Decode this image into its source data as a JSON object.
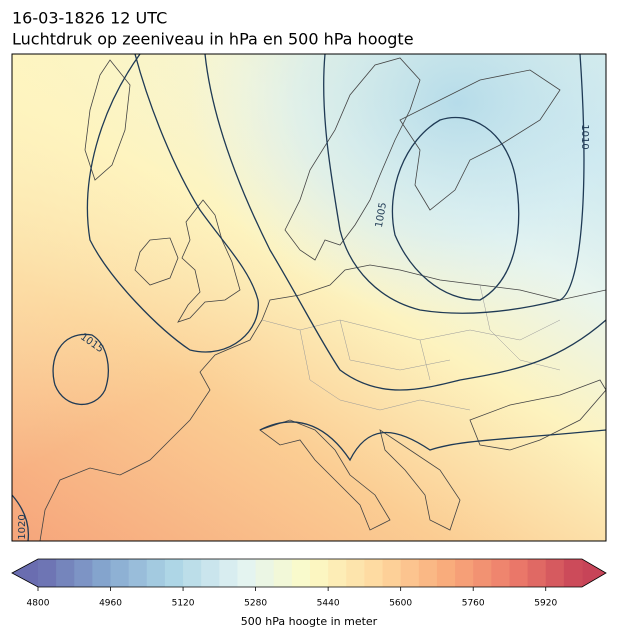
{
  "title": {
    "line1": "16-03-1826 12 UTC",
    "line2": "Luchtdruk op zeeniveau in hPa en 500 hPa hoogte"
  },
  "contour_labels": [
    1015,
    1005,
    1010,
    1020
  ],
  "colorbar": {
    "label": "500 hPa hoogte in meter",
    "range": [
      4800,
      6000
    ],
    "step": 40,
    "ticks": [
      4800,
      4960,
      5120,
      5280,
      5440,
      5600,
      5760,
      5920
    ],
    "colormap": [
      "#6a6db0",
      "#86a8cf",
      "#aed6e6",
      "#e2f3f3",
      "#fcfbc6",
      "#fed99f",
      "#f9ac7c",
      "#ec7b6a",
      "#c74458"
    ]
  }
}
